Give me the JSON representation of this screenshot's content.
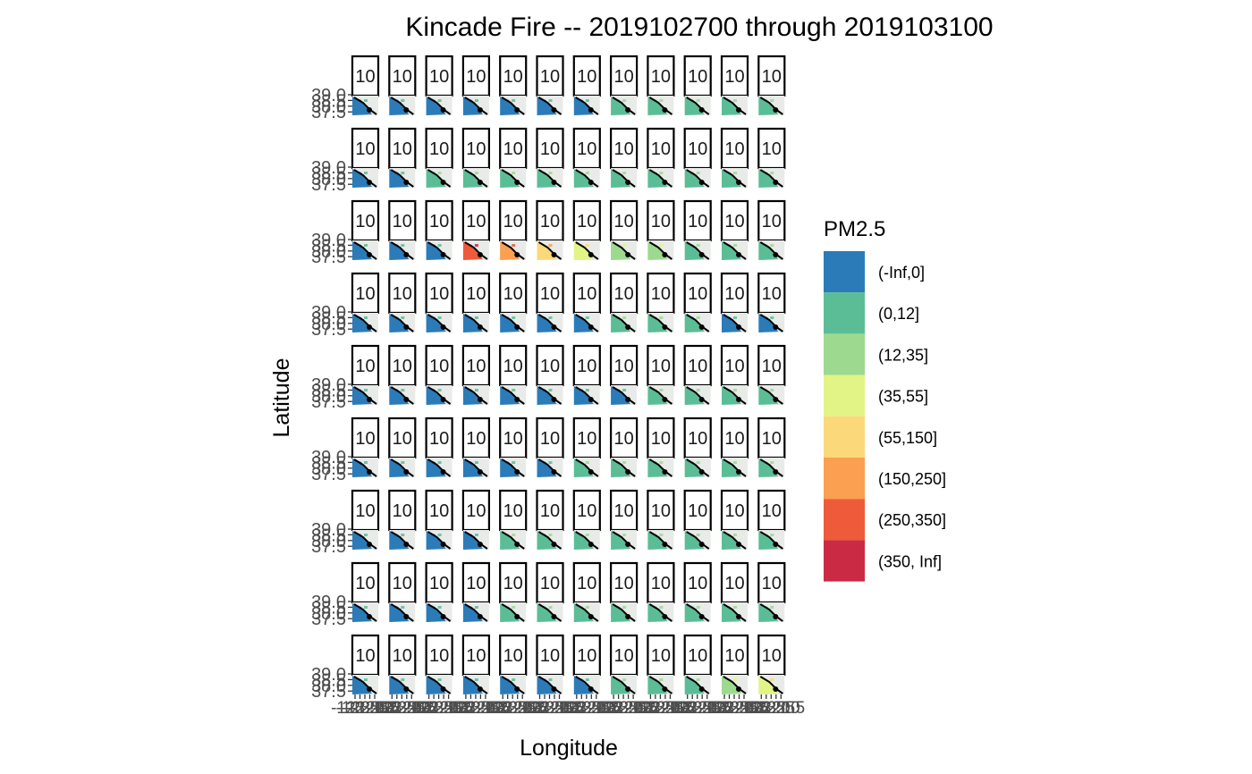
{
  "chart_data": {
    "type": "heatmap",
    "title": "Kincade Fire -- 2019102700 through 2019103100",
    "xlabel": "Longitude",
    "ylabel": "Latitude",
    "facet_rows": 9,
    "facet_cols": 12,
    "panel_label": "10",
    "y_ticks": [
      "39.0",
      "38.5",
      "38.0",
      "37.5"
    ],
    "x_ticks": [
      "-123.5",
      "-123.0",
      "-122.5",
      "-122.0",
      "-121.5"
    ],
    "legend": {
      "title": "PM2.5",
      "position": "right",
      "entries": [
        {
          "label": "(-Inf,0]",
          "color": "#2b7bb9"
        },
        {
          "label": "(0,12]",
          "color": "#5bbd96"
        },
        {
          "label": "(12,35]",
          "color": "#9dd98f"
        },
        {
          "label": "(35,55]",
          "color": "#e2f486"
        },
        {
          "label": "(55,150]",
          "color": "#fbd97a"
        },
        {
          "label": "(150,250]",
          "color": "#fb9f50"
        },
        {
          "label": "(250,350]",
          "color": "#ee5b3a"
        },
        {
          "label": "(350, Inf]",
          "color": "#cb2a44"
        }
      ]
    },
    "panel_background": "#e9ebe9",
    "dominant_class_by_row": [
      [
        0,
        0,
        0,
        0,
        0,
        0,
        0,
        1,
        1,
        1,
        1,
        1
      ],
      [
        0,
        0,
        1,
        1,
        1,
        1,
        1,
        1,
        1,
        1,
        1,
        1
      ],
      [
        0,
        0,
        0,
        6,
        5,
        4,
        3,
        2,
        2,
        1,
        1,
        1
      ],
      [
        0,
        0,
        0,
        0,
        0,
        0,
        0,
        1,
        1,
        1,
        0,
        0
      ],
      [
        0,
        0,
        0,
        0,
        0,
        0,
        0,
        0,
        1,
        1,
        1,
        1
      ],
      [
        0,
        0,
        0,
        0,
        0,
        0,
        1,
        1,
        1,
        1,
        1,
        1
      ],
      [
        0,
        0,
        0,
        0,
        1,
        1,
        1,
        1,
        1,
        1,
        1,
        1
      ],
      [
        0,
        0,
        0,
        0,
        1,
        1,
        1,
        1,
        1,
        1,
        1,
        1
      ],
      [
        0,
        0,
        0,
        0,
        0,
        0,
        0,
        1,
        1,
        1,
        2,
        3
      ]
    ]
  }
}
